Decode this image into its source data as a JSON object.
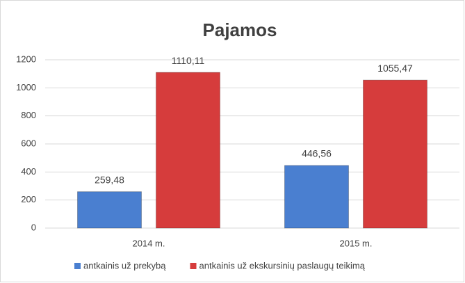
{
  "chart_data": {
    "type": "bar",
    "title": "Pajamos",
    "categories": [
      "2014 m.",
      "2015 m."
    ],
    "series": [
      {
        "name": "antkainis už prekybą",
        "color": "#4a7fd0",
        "values": [
          259.48,
          446.56
        ],
        "value_labels": [
          "259,48",
          "446,56"
        ]
      },
      {
        "name": "antkainis už ekskursinių paslaugų teikimą",
        "color": "#d63c3c",
        "values": [
          1110.11,
          1055.47
        ],
        "value_labels": [
          "1110,11",
          "1055,47"
        ]
      }
    ],
    "ylim": [
      0,
      1200
    ],
    "yticks": [
      0,
      200,
      400,
      600,
      800,
      1000,
      1200
    ],
    "grid": true,
    "legend": "bottom"
  }
}
